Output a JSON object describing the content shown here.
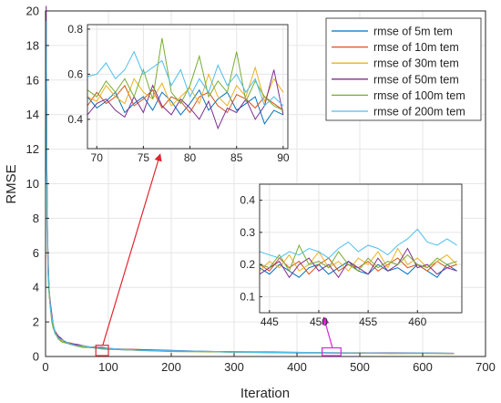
{
  "chart_data": {
    "type": "line",
    "title": "",
    "xlabel": "Iteration",
    "ylabel": "RMSE",
    "xlim": [
      0,
      700
    ],
    "ylim": [
      0,
      20
    ],
    "xticks": [
      0,
      100,
      200,
      300,
      400,
      500,
      600,
      700
    ],
    "yticks": [
      0,
      2,
      4,
      6,
      8,
      10,
      12,
      14,
      16,
      18,
      20
    ],
    "grid": true,
    "legend_position": "top-right",
    "series": [
      {
        "name": "rmse of 5m tem",
        "color": "#0072BD"
      },
      {
        "name": "rmse of 10m tem",
        "color": "#D95319"
      },
      {
        "name": "rmse of 30m tem",
        "color": "#EDB120"
      },
      {
        "name": "rmse of 50m tem",
        "color": "#7E2F8E"
      },
      {
        "name": "rmse of 100m tem",
        "color": "#77AC30"
      },
      {
        "name": "rmse of 200m tem",
        "color": "#4DBEEE"
      }
    ],
    "main_curve": {
      "x": [
        1,
        2,
        3,
        4,
        5,
        6,
        8,
        10,
        12,
        15,
        20,
        25,
        30,
        40,
        50,
        60,
        70,
        80,
        90,
        100,
        120,
        150,
        200,
        250,
        300,
        350,
        400,
        450,
        500,
        550,
        600,
        650
      ],
      "y": [
        18.5,
        11.0,
        7.0,
        5.2,
        4.3,
        3.6,
        2.8,
        2.2,
        1.8,
        1.4,
        1.1,
        0.95,
        0.85,
        0.72,
        0.64,
        0.58,
        0.54,
        0.5,
        0.47,
        0.45,
        0.41,
        0.37,
        0.32,
        0.29,
        0.26,
        0.24,
        0.22,
        0.21,
        0.2,
        0.19,
        0.19,
        0.18
      ]
    },
    "insets": [
      {
        "xlim": [
          69,
          90.5
        ],
        "ylim": [
          0.27,
          0.82
        ],
        "xticks": [
          70,
          75,
          80,
          85,
          90
        ],
        "yticks": [
          0.4,
          0.6,
          0.8
        ],
        "x": [
          69,
          70,
          71,
          72,
          73,
          74,
          75,
          76,
          77,
          78,
          79,
          80,
          81,
          82,
          83,
          84,
          85,
          86,
          87,
          88,
          89,
          90
        ],
        "series_values": [
          [
            0.5,
            0.45,
            0.48,
            0.52,
            0.43,
            0.47,
            0.5,
            0.44,
            0.52,
            0.48,
            0.42,
            0.47,
            0.53,
            0.44,
            0.49,
            0.52,
            0.44,
            0.47,
            0.5,
            0.38,
            0.44,
            0.42
          ],
          [
            0.46,
            0.52,
            0.47,
            0.5,
            0.55,
            0.46,
            0.49,
            0.53,
            0.45,
            0.5,
            0.48,
            0.43,
            0.5,
            0.52,
            0.46,
            0.43,
            0.51,
            0.49,
            0.45,
            0.5,
            0.47,
            0.44
          ],
          [
            0.5,
            0.48,
            0.55,
            0.5,
            0.47,
            0.58,
            0.52,
            0.49,
            0.56,
            0.46,
            0.5,
            0.54,
            0.47,
            0.6,
            0.5,
            0.46,
            0.55,
            0.5,
            0.63,
            0.48,
            0.58,
            0.52
          ],
          [
            0.42,
            0.47,
            0.49,
            0.44,
            0.41,
            0.5,
            0.43,
            0.55,
            0.46,
            0.42,
            0.49,
            0.45,
            0.4,
            0.48,
            0.36,
            0.45,
            0.43,
            0.49,
            0.4,
            0.46,
            0.62,
            0.42
          ],
          [
            0.53,
            0.5,
            0.57,
            0.52,
            0.58,
            0.5,
            0.62,
            0.49,
            0.76,
            0.52,
            0.47,
            0.55,
            0.68,
            0.5,
            0.57,
            0.52,
            0.7,
            0.48,
            0.57,
            0.5,
            0.46,
            0.44
          ],
          [
            0.59,
            0.6,
            0.65,
            0.58,
            0.62,
            0.7,
            0.6,
            0.63,
            0.66,
            0.55,
            0.62,
            0.5,
            0.58,
            0.52,
            0.64,
            0.55,
            0.6,
            0.52,
            0.58,
            0.46,
            0.5,
            0.46
          ]
        ]
      },
      {
        "xlim": [
          444,
          464.5
        ],
        "ylim": [
          0.05,
          0.45
        ],
        "xticks": [
          445,
          450,
          455,
          460
        ],
        "yticks": [
          0.1,
          0.2,
          0.3,
          0.4
        ],
        "x": [
          444,
          445,
          446,
          447,
          448,
          449,
          450,
          451,
          452,
          453,
          454,
          455,
          456,
          457,
          458,
          459,
          460,
          461,
          462,
          463,
          464
        ],
        "series_values": [
          [
            0.19,
            0.17,
            0.2,
            0.18,
            0.16,
            0.19,
            0.2,
            0.17,
            0.19,
            0.21,
            0.18,
            0.17,
            0.2,
            0.18,
            0.19,
            0.17,
            0.2,
            0.18,
            0.16,
            0.2,
            0.18
          ],
          [
            0.2,
            0.18,
            0.22,
            0.19,
            0.21,
            0.17,
            0.2,
            0.22,
            0.18,
            0.2,
            0.19,
            0.21,
            0.18,
            0.2,
            0.22,
            0.19,
            0.2,
            0.18,
            0.21,
            0.19,
            0.2
          ],
          [
            0.18,
            0.21,
            0.19,
            0.23,
            0.18,
            0.2,
            0.24,
            0.19,
            0.21,
            0.18,
            0.22,
            0.2,
            0.24,
            0.19,
            0.25,
            0.2,
            0.22,
            0.19,
            0.21,
            0.23,
            0.2
          ],
          [
            0.17,
            0.19,
            0.21,
            0.16,
            0.2,
            0.22,
            0.18,
            0.2,
            0.16,
            0.21,
            0.19,
            0.17,
            0.22,
            0.18,
            0.2,
            0.25,
            0.19,
            0.2,
            0.17,
            0.19,
            0.18
          ],
          [
            0.2,
            0.19,
            0.23,
            0.18,
            0.26,
            0.2,
            0.21,
            0.19,
            0.24,
            0.2,
            0.18,
            0.22,
            0.19,
            0.21,
            0.2,
            0.23,
            0.2,
            0.19,
            0.22,
            0.2,
            0.21
          ],
          [
            0.24,
            0.23,
            0.22,
            0.24,
            0.23,
            0.25,
            0.24,
            0.22,
            0.25,
            0.27,
            0.24,
            0.26,
            0.25,
            0.23,
            0.26,
            0.28,
            0.31,
            0.27,
            0.26,
            0.28,
            0.26
          ]
        ]
      }
    ],
    "highlights": [
      {
        "x_range": [
          80,
          100
        ],
        "y_range": [
          0.05,
          0.65
        ],
        "color": "#e0262e",
        "target_inset": 0
      },
      {
        "x_range": [
          440,
          470
        ],
        "y_range": [
          0.05,
          0.5
        ],
        "color": "#e020e0",
        "target_inset": 1
      }
    ]
  }
}
